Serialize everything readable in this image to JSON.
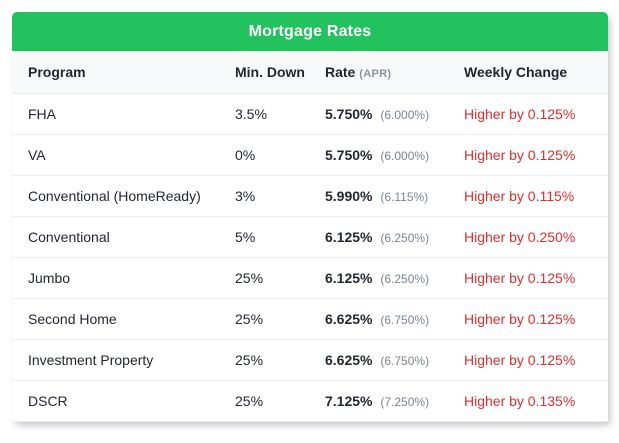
{
  "header": {
    "title": "Mortgage Rates"
  },
  "colors": {
    "header_green": "#22c35e",
    "change_red": "#e12d2d",
    "header_row_bg": "#f8f9fb",
    "apr_gray": "#7b8494"
  },
  "chart_data": {
    "type": "table",
    "title": "Mortgage Rates",
    "columns": {
      "program": "Program",
      "min_down": "Min. Down",
      "rate": "Rate",
      "rate_sub": "(APR)",
      "weekly_change": "Weekly Change"
    },
    "rows": [
      {
        "program": "FHA",
        "min_down": "3.5%",
        "rate": "5.750%",
        "apr": "(6.000%)",
        "weekly_change": "Higher by 0.125%"
      },
      {
        "program": "VA",
        "min_down": "0%",
        "rate": "5.750%",
        "apr": "(6.000%)",
        "weekly_change": "Higher by 0.125%"
      },
      {
        "program": "Conventional (HomeReady)",
        "min_down": "3%",
        "rate": "5.990%",
        "apr": "(6.115%)",
        "weekly_change": "Higher by 0.115%"
      },
      {
        "program": "Conventional",
        "min_down": "5%",
        "rate": "6.125%",
        "apr": "(6.250%)",
        "weekly_change": "Higher by 0.250%"
      },
      {
        "program": "Jumbo",
        "min_down": "25%",
        "rate": "6.125%",
        "apr": "(6.250%)",
        "weekly_change": "Higher by 0.125%"
      },
      {
        "program": "Second Home",
        "min_down": "25%",
        "rate": "6.625%",
        "apr": "(6.750%)",
        "weekly_change": "Higher by 0.125%"
      },
      {
        "program": "Investment Property",
        "min_down": "25%",
        "rate": "6.625%",
        "apr": "(6.750%)",
        "weekly_change": "Higher by 0.125%"
      },
      {
        "program": "DSCR",
        "min_down": "25%",
        "rate": "7.125%",
        "apr": "(7.250%)",
        "weekly_change": "Higher by 0.135%"
      }
    ]
  }
}
